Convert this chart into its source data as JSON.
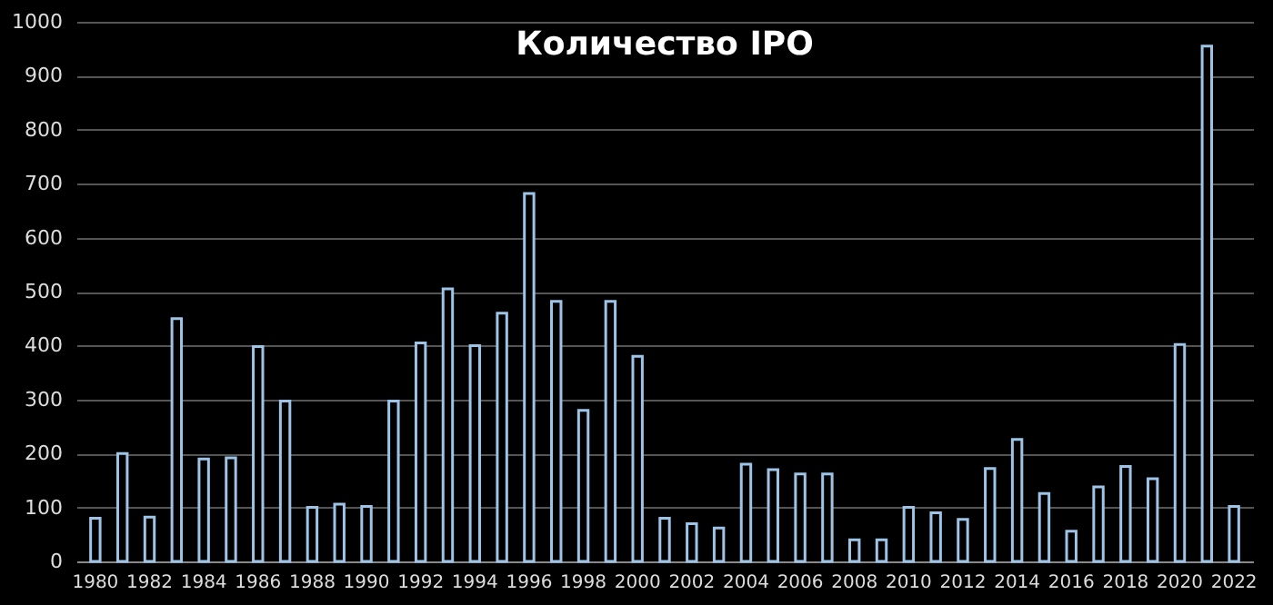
{
  "chart_data": {
    "type": "bar",
    "title": "Количество IPO",
    "categories": [
      "1980",
      null,
      "1982",
      null,
      "1984",
      null,
      "1986",
      null,
      "1988",
      null,
      "1990",
      null,
      "1992",
      null,
      "1994",
      null,
      "1996",
      null,
      "1998",
      null,
      "2000",
      null,
      "2002",
      null,
      "2004",
      null,
      "2006",
      null,
      "2008",
      null,
      "2010",
      null,
      "2012",
      null,
      "2014",
      null,
      "2016",
      null,
      "2018",
      null,
      "2020",
      null,
      "2022"
    ],
    "values": [
      80,
      200,
      82,
      450,
      190,
      192,
      398,
      297,
      100,
      106,
      102,
      297,
      405,
      505,
      400,
      460,
      682,
      482,
      280,
      482,
      380,
      80,
      70,
      62,
      180,
      170,
      162,
      162,
      40,
      40,
      100,
      90,
      78,
      172,
      226,
      126,
      56,
      138,
      176,
      153,
      402,
      955,
      102
    ],
    "color": "#9dc3e6",
    "ylim": [
      0,
      1000
    ],
    "yticks": [
      0,
      100,
      200,
      300,
      400,
      500,
      600,
      700,
      800,
      900,
      1000
    ],
    "grid": "y"
  }
}
